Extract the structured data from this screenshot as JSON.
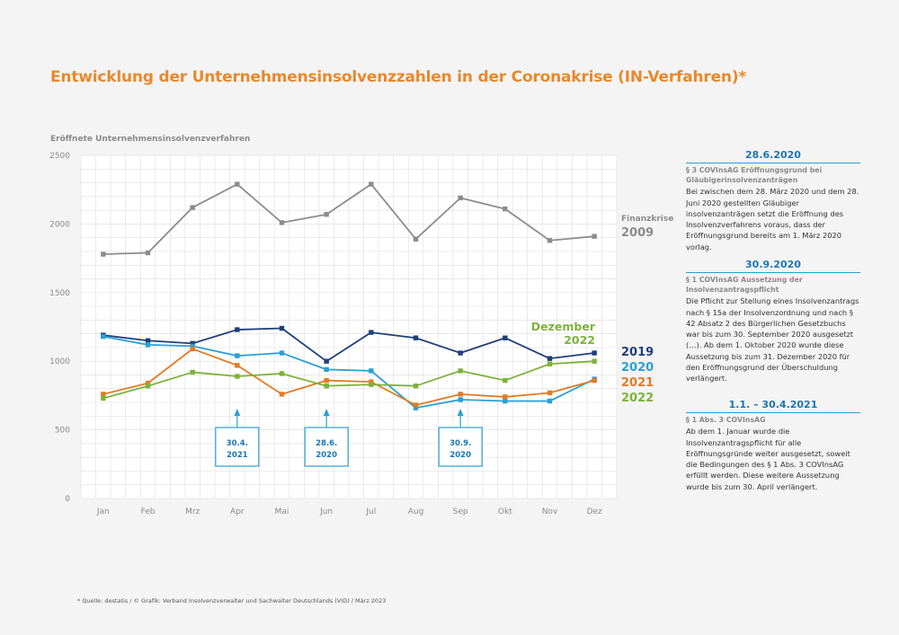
{
  "title": "Entwicklung der Unternehmensinsolvenzzahlen in der Coronakrise (IN-Verfahren)*",
  "footnote": "* Quelle: destatis / © Grafik: Verband Insolvenzverwalter und Sachwalter Deutschlands (VID) / März 2023",
  "chart_data": {
    "type": "line",
    "ylabel": "Eröffnete Unternehmensinsolvenzverfahren",
    "categories": [
      "Jan",
      "Feb",
      "Mrz",
      "Apr",
      "Mai",
      "Jun",
      "Jul",
      "Aug",
      "Sep",
      "Okt",
      "Nov",
      "Dez"
    ],
    "ylim": [
      0,
      2500
    ],
    "yticks": [
      0,
      500,
      1000,
      1500,
      2000,
      2500
    ],
    "grid": true,
    "series": [
      {
        "name": "Finanzkrise 2009",
        "label_line1": "Finanzkrise",
        "label_line2": "2009",
        "color": "#8c8c8c",
        "values": [
          1780,
          1790,
          2120,
          2290,
          2010,
          2070,
          2290,
          1890,
          2190,
          2110,
          1880,
          1910
        ]
      },
      {
        "name": "2019",
        "color": "#1f3f7a",
        "values": [
          1190,
          1150,
          1130,
          1230,
          1240,
          1000,
          1210,
          1170,
          1060,
          1170,
          1020,
          1060
        ]
      },
      {
        "name": "2020",
        "color": "#2aa0d6",
        "values": [
          1180,
          1120,
          1110,
          1040,
          1060,
          940,
          930,
          660,
          720,
          710,
          710,
          870
        ]
      },
      {
        "name": "2021",
        "color": "#e07b25",
        "values": [
          760,
          840,
          1090,
          970,
          760,
          860,
          850,
          680,
          760,
          740,
          770,
          860
        ]
      },
      {
        "name": "2022",
        "color": "#7fb23c",
        "values": [
          730,
          820,
          920,
          890,
          910,
          820,
          830,
          820,
          930,
          860,
          980,
          1000
        ]
      }
    ],
    "annotation_label": {
      "line1": "Dezember",
      "line2": "2022",
      "color": "#7fb23c"
    },
    "markers": [
      {
        "category": "Apr",
        "line1": "30.4.",
        "line2": "2021"
      },
      {
        "category": "Jun",
        "line1": "28.6.",
        "line2": "2020"
      },
      {
        "category": "Sep",
        "line1": "30.9.",
        "line2": "2020"
      }
    ]
  },
  "sidebar": [
    {
      "date": "28.6.2020",
      "sub": "§ 3 COVInsAG Eröffnungsgrund bei Gläubigerinsolvenzanträgen",
      "body": "Bei zwischen dem 28. März 2020 und dem 28. Juni 2020 gestellten Gläubiger insolvenzanträgen setzt die Eröffnung des Insolvenzverfahrens voraus, dass der Eröffnungsgrund bereits am 1. März 2020 vorlag."
    },
    {
      "date": "30.9.2020",
      "sub": "§ 1 COVInsAG Aussetzung der Insolvenzantragspflicht",
      "body": "Die Pflicht zur Stellung eines Insolvenzantrags nach § 15a der Insolvenzordnung und nach § 42 Absatz 2 des Bürgerlichen Gesetzbuchs war bis zum 30. September 2020 ausgesetzt (…). Ab dem 1. Oktober 2020 wurde diese Aussetzung bis zum 31. Dezember 2020 für den Eröffnungsgrund der Überschuldung verlängert."
    },
    {
      "date": "1.1. – 30.4.2021",
      "sub": "§ 1 Abs. 3 COVInsAG",
      "body": "Ab dem 1. Januar wurde die Insolvenzantragspflicht für alle Eröffnungsgründe weiter ausgesetzt, soweit die Bedingungen des § 1 Abs. 3 COVInsAG erfüllt werden. Diese weitere Aussetzung wurde bis zum 30. April verlängert."
    }
  ]
}
